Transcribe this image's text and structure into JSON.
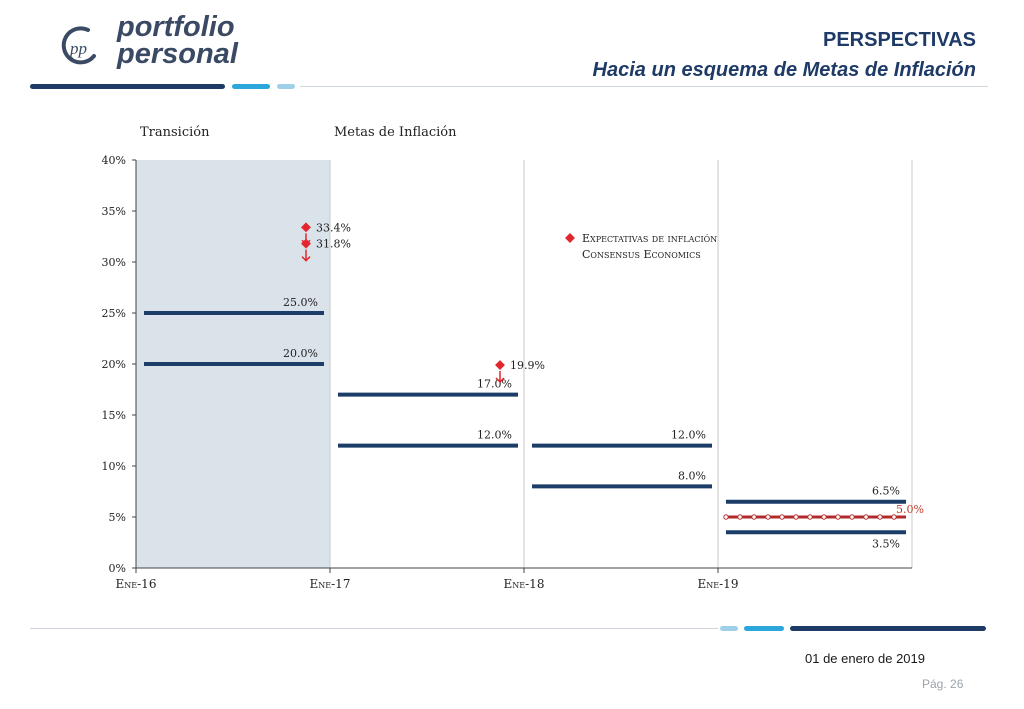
{
  "brand": {
    "name_line1": "portfolio",
    "name_line2": "personal",
    "monogram": "pp"
  },
  "header": {
    "title": "PERSPECTIVAS",
    "subtitle": "Hacia un esquema de Metas de Inflación"
  },
  "footer": {
    "date": "01 de enero de 2019",
    "page": "Pág. 26"
  },
  "colors": {
    "navy": "#1e3a66",
    "accent": "#2ca7dc",
    "light": "#9fd0ea",
    "target": "#1b3d68",
    "expectation": "#e3262e",
    "transition_shade": "#dae2ea"
  },
  "chart_data": {
    "type": "line",
    "x_ticks": [
      "Ene-16",
      "Ene-17",
      "Ene-18",
      "Ene-19"
    ],
    "y_ticks": [
      "0%",
      "5%",
      "10%",
      "15%",
      "20%",
      "25%",
      "30%",
      "35%",
      "40%"
    ],
    "ylim": [
      0,
      40
    ],
    "regions": [
      {
        "label": "Transición",
        "from": "Ene-16",
        "to": "Ene-17",
        "shaded": true
      },
      {
        "label": "Metas de Inflación",
        "from": "Ene-17",
        "to": "Ene-20",
        "shaded": false
      }
    ],
    "targets": [
      {
        "year": 2016,
        "lower": 20.0,
        "upper": 25.0
      },
      {
        "year": 2017,
        "lower": 12.0,
        "upper": 17.0
      },
      {
        "year": 2018,
        "lower": 8.0,
        "upper": 12.0
      },
      {
        "year": 2019,
        "lower": 3.5,
        "upper": 6.5,
        "center": 5.0
      }
    ],
    "point_labels": [
      {
        "year": 2016,
        "value": 25.0,
        "text": "25.0%"
      },
      {
        "year": 2016,
        "value": 20.0,
        "text": "20.0%"
      },
      {
        "year": 2017,
        "value": 17.0,
        "text": "17.0%"
      },
      {
        "year": 2017,
        "value": 12.0,
        "text": "12.0%"
      },
      {
        "year": 2018,
        "value": 12.0,
        "text": "12.0%"
      },
      {
        "year": 2018,
        "value": 8.0,
        "text": "8.0%"
      },
      {
        "year": 2019,
        "value": 6.5,
        "text": "6.5%"
      },
      {
        "year": 2019,
        "value": 5.0,
        "text": "5.0%"
      },
      {
        "year": 2019,
        "value": 3.5,
        "text": "3.5%"
      }
    ],
    "expectations": [
      {
        "date": "Ene-17",
        "values": [
          33.4,
          31.8
        ],
        "labels": [
          "33.4%",
          "31.8%"
        ]
      },
      {
        "date": "Ene-18",
        "values": [
          19.9
        ],
        "labels": [
          "19.9%"
        ]
      }
    ],
    "legend": {
      "label_line1": "Expectativas de inflación",
      "label_line2": "Consensus Economics",
      "position": "top-center"
    },
    "grid": {
      "vertical": true,
      "horizontal": false
    }
  }
}
